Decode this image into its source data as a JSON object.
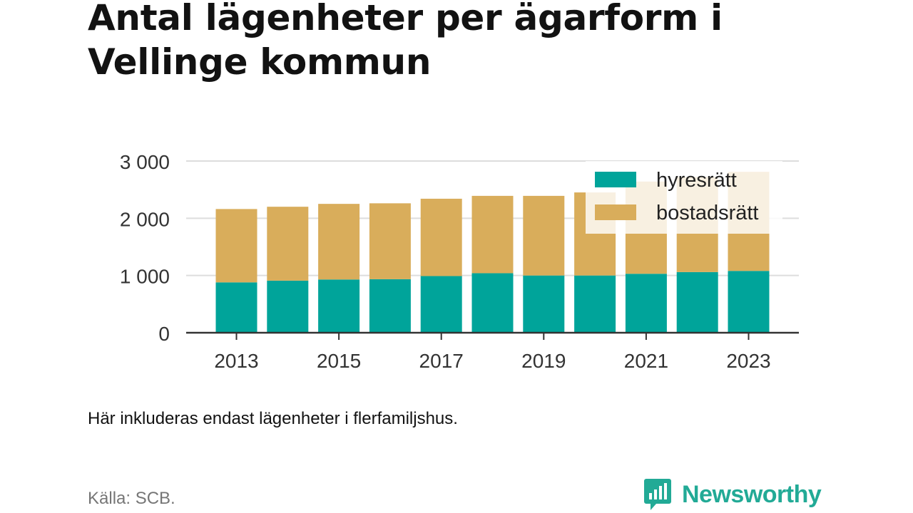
{
  "title": "Antal lägenheter per ägarform i Vellinge kommun",
  "note": "Här inkluderas endast lägenheter i flerfamiljshus.",
  "source": "Källa: SCB.",
  "brand": {
    "name": "Newsworthy",
    "icon": "newsworthy-logo-icon",
    "color": "#22aa96"
  },
  "chart_data": {
    "type": "bar",
    "stacked": true,
    "categories": [
      2013,
      2014,
      2015,
      2016,
      2017,
      2018,
      2019,
      2020,
      2021,
      2022,
      2023
    ],
    "x_tick_labels": [
      "2013",
      "2015",
      "2017",
      "2019",
      "2021",
      "2023"
    ],
    "y_tick_labels": [
      "0",
      "1 000",
      "2 000",
      "3 000"
    ],
    "y_ticks": [
      0,
      1000,
      2000,
      3000
    ],
    "ylim": [
      0,
      3000
    ],
    "grid": true,
    "legend_position": "top-right",
    "series": [
      {
        "name": "hyresrätt",
        "color": "#00a49a",
        "values": [
          880,
          910,
          930,
          935,
          990,
          1040,
          1000,
          1000,
          1030,
          1060,
          1080
        ]
      },
      {
        "name": "bostadsrätt",
        "color": "#d9ad5b",
        "values": [
          1300,
          1310,
          1340,
          1345,
          1370,
          1370,
          1410,
          1470,
          1630,
          1680,
          1750
        ]
      }
    ]
  }
}
